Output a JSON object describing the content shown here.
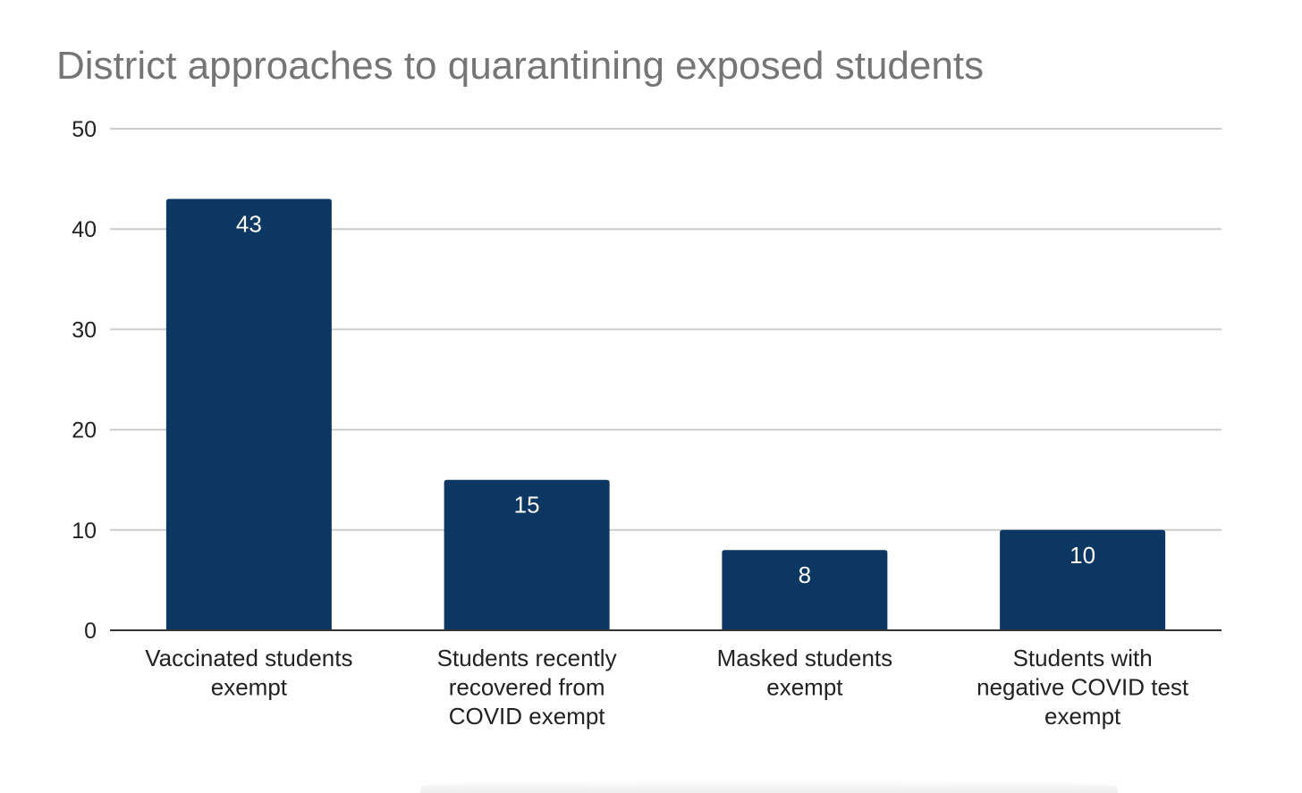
{
  "chart_data": {
    "type": "bar",
    "title": "District approaches to quarantining exposed students",
    "xlabel": "",
    "ylabel": "",
    "categories": [
      [
        "Vaccinated students",
        "exempt"
      ],
      [
        "Students recently",
        "recovered from",
        "COVID exempt"
      ],
      [
        "Masked students",
        "exempt"
      ],
      [
        "Students with",
        "negative COVID test",
        "exempt"
      ]
    ],
    "values": [
      43,
      15,
      8,
      10
    ],
    "ylim": [
      0,
      50
    ],
    "yticks": [
      0,
      10,
      20,
      30,
      40,
      50
    ],
    "grid": true,
    "legend": "none",
    "bar_color": "#0b3762",
    "data_label_color": "#ffffff"
  }
}
